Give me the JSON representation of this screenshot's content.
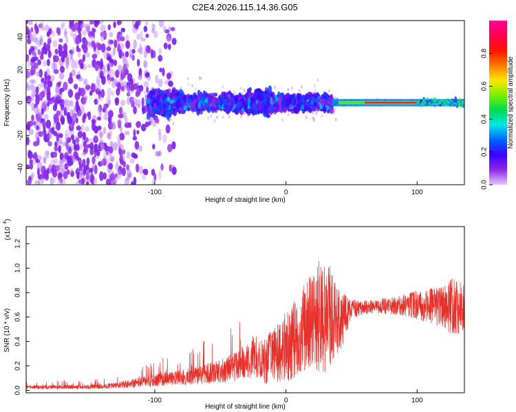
{
  "figure_title": "C2E4.2026.115.14.36.G05",
  "chart_data": [
    {
      "type": "heatmap",
      "title": "C2E4.2026.115.14.36.G05",
      "xlabel": "Height of straight line (km)",
      "ylabel": "Frequency (Hz)",
      "xlim": [
        -198,
        136
      ],
      "ylim": [
        -50,
        50
      ],
      "x_ticks": [
        -100,
        0,
        100
      ],
      "y_ticks": [
        -40,
        -20,
        0,
        20,
        40
      ],
      "colorbar": {
        "label": "Normalized spectral amplitude",
        "range": [
          0.0,
          1.0
        ],
        "ticks": [
          0.0,
          0.2,
          0.4,
          0.6,
          0.8
        ],
        "colormap": [
          "#e2c8ff",
          "#8c28e6",
          "#3c00ff",
          "#0064ff",
          "#00e6e6",
          "#00dc50",
          "#78f000",
          "#ffe600",
          "#ff7800",
          "#ff1400",
          "#ff0050",
          "#ff0096"
        ]
      },
      "band": {
        "center_frequency_hz": 0,
        "noise_region_x": [
          -198,
          -105
        ],
        "dense_region_x": [
          -105,
          35
        ],
        "narrow_region_x": [
          35,
          100
        ],
        "end_region_x": [
          100,
          136
        ]
      }
    },
    {
      "type": "line",
      "xlabel": "Height of straight line (km)",
      "ylabel": "SNR (10 * v/v)",
      "y_multiplier": "(x10",
      "y_multiplier_exp": "4",
      "y_multiplier_close": ")",
      "xlim": [
        -198,
        136
      ],
      "ylim": [
        -0.02,
        1.34
      ],
      "x_ticks": [
        -100,
        0,
        100
      ],
      "y_ticks": [
        0.0,
        0.2,
        0.4,
        0.6,
        0.8,
        1.0,
        1.2
      ],
      "series": [
        {
          "name": "SNR",
          "color": "#e8302a",
          "envelope": {
            "x": [
              -198,
              -150,
              -130,
              -110,
              -90,
              -70,
              -50,
              -30,
              -15,
              -5,
              5,
              15,
              22,
              28,
              35,
              42,
              50,
              60,
              80,
              100,
              110,
              120,
              128,
              136
            ],
            "mean": [
              0.02,
              0.02,
              0.03,
              0.05,
              0.07,
              0.09,
              0.12,
              0.17,
              0.25,
              0.32,
              0.4,
              0.52,
              0.6,
              0.62,
              0.6,
              0.58,
              0.66,
              0.68,
              0.69,
              0.7,
              0.69,
              0.68,
              0.68,
              0.68
            ],
            "spread": [
              0.015,
              0.015,
              0.02,
              0.04,
              0.05,
              0.06,
              0.08,
              0.12,
              0.2,
              0.25,
              0.32,
              0.36,
              0.42,
              0.5,
              0.4,
              0.25,
              0.08,
              0.06,
              0.07,
              0.12,
              0.15,
              0.18,
              0.25,
              0.18
            ]
          }
        }
      ]
    }
  ]
}
